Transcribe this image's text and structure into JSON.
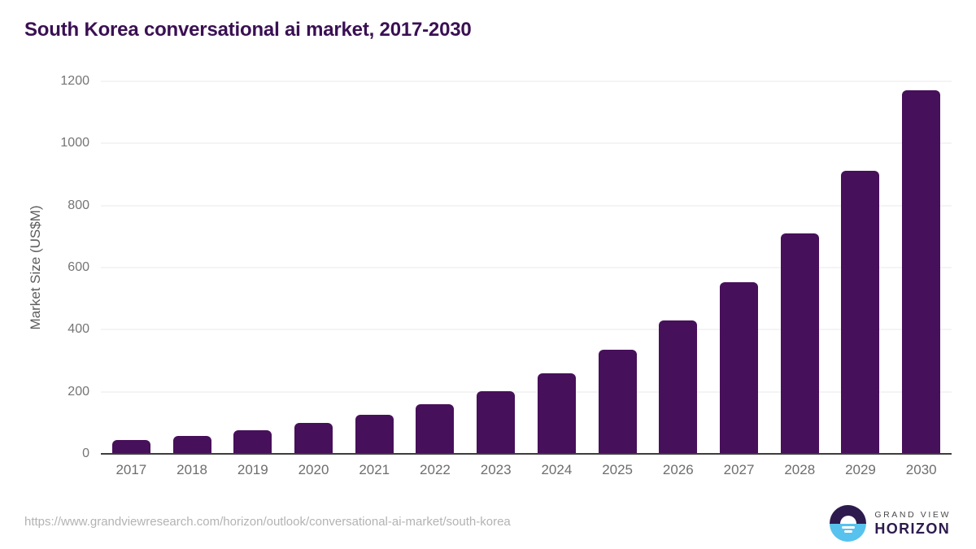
{
  "chart_data": {
    "type": "bar",
    "title": "South Korea conversational ai market, 2017-2030",
    "categories": [
      "2017",
      "2018",
      "2019",
      "2020",
      "2021",
      "2022",
      "2023",
      "2024",
      "2025",
      "2026",
      "2027",
      "2028",
      "2029",
      "2030"
    ],
    "values": [
      45,
      58,
      75,
      99,
      126,
      159,
      203,
      260,
      335,
      430,
      552,
      710,
      911,
      1170
    ],
    "xlabel": "",
    "ylabel": "Market Size (US$M)",
    "ylim": [
      0,
      1200
    ],
    "yticks": [
      0,
      200,
      400,
      600,
      800,
      1000,
      1200
    ],
    "grid": "horizontal-only",
    "legend": "none",
    "bar_color": "#47105a",
    "title_color": "#3a1053"
  },
  "footer": {
    "source_url": "https://www.grandviewresearch.com/horizon/outlook/conversational-ai-market/south-korea",
    "logo": {
      "top_text": "GRAND VIEW",
      "bottom_text": "HORIZON",
      "circle_top_color": "#2d1b4e",
      "circle_bottom_color": "#58c2ee"
    }
  }
}
